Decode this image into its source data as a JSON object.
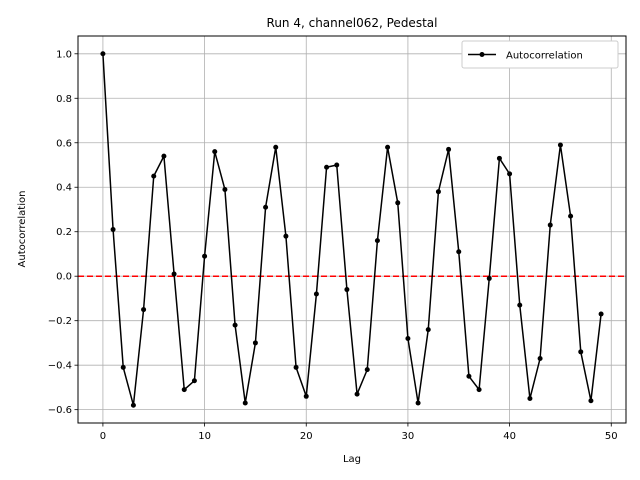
{
  "chart_data": {
    "type": "line",
    "title": "Run 4, channel062, Pedestal",
    "xlabel": "Lag",
    "ylabel": "Autocorrelation",
    "xlim": [
      -2.45,
      51.45
    ],
    "ylim": [
      -0.66,
      1.08
    ],
    "xticks": [
      0,
      10,
      20,
      30,
      40,
      50
    ],
    "yticks": [
      -0.6,
      -0.4,
      -0.2,
      0.0,
      0.2,
      0.4,
      0.6,
      0.8,
      1.0
    ],
    "xtick_labels": [
      "0",
      "10",
      "20",
      "30",
      "40",
      "50"
    ],
    "ytick_labels": [
      "−0.6",
      "−0.4",
      "−0.2",
      "0.0",
      "0.2",
      "0.4",
      "0.6",
      "0.8",
      "1.0"
    ],
    "grid": true,
    "legend": {
      "position": "top-right",
      "entries": [
        "Autocorrelation"
      ]
    },
    "series": [
      {
        "name": "Autocorrelation",
        "color": "#000000",
        "marker": "dot",
        "x": [
          0,
          1,
          2,
          3,
          4,
          5,
          6,
          7,
          8,
          9,
          10,
          11,
          12,
          13,
          14,
          15,
          16,
          17,
          18,
          19,
          20,
          21,
          22,
          23,
          24,
          25,
          26,
          27,
          28,
          29,
          30,
          31,
          32,
          33,
          34,
          35,
          36,
          37,
          38,
          39,
          40,
          41,
          42,
          43,
          44,
          45,
          46,
          47,
          48,
          49
        ],
        "y": [
          1.0,
          0.21,
          -0.41,
          -0.58,
          -0.15,
          0.45,
          0.54,
          0.01,
          -0.51,
          -0.47,
          0.09,
          0.56,
          0.39,
          -0.22,
          -0.57,
          -0.3,
          0.31,
          0.58,
          0.18,
          -0.41,
          -0.54,
          -0.08,
          0.49,
          0.5,
          -0.06,
          -0.53,
          -0.42,
          0.16,
          0.58,
          0.33,
          -0.28,
          -0.57,
          -0.24,
          0.38,
          0.57,
          0.11,
          -0.45,
          -0.51,
          -0.01,
          0.53,
          0.46,
          -0.13,
          -0.55,
          -0.37,
          0.23,
          0.59,
          0.27,
          -0.34,
          -0.56,
          -0.17
        ]
      }
    ],
    "reference_line": {
      "y": 0.0,
      "color": "#ff0000",
      "style": "dashed"
    }
  }
}
